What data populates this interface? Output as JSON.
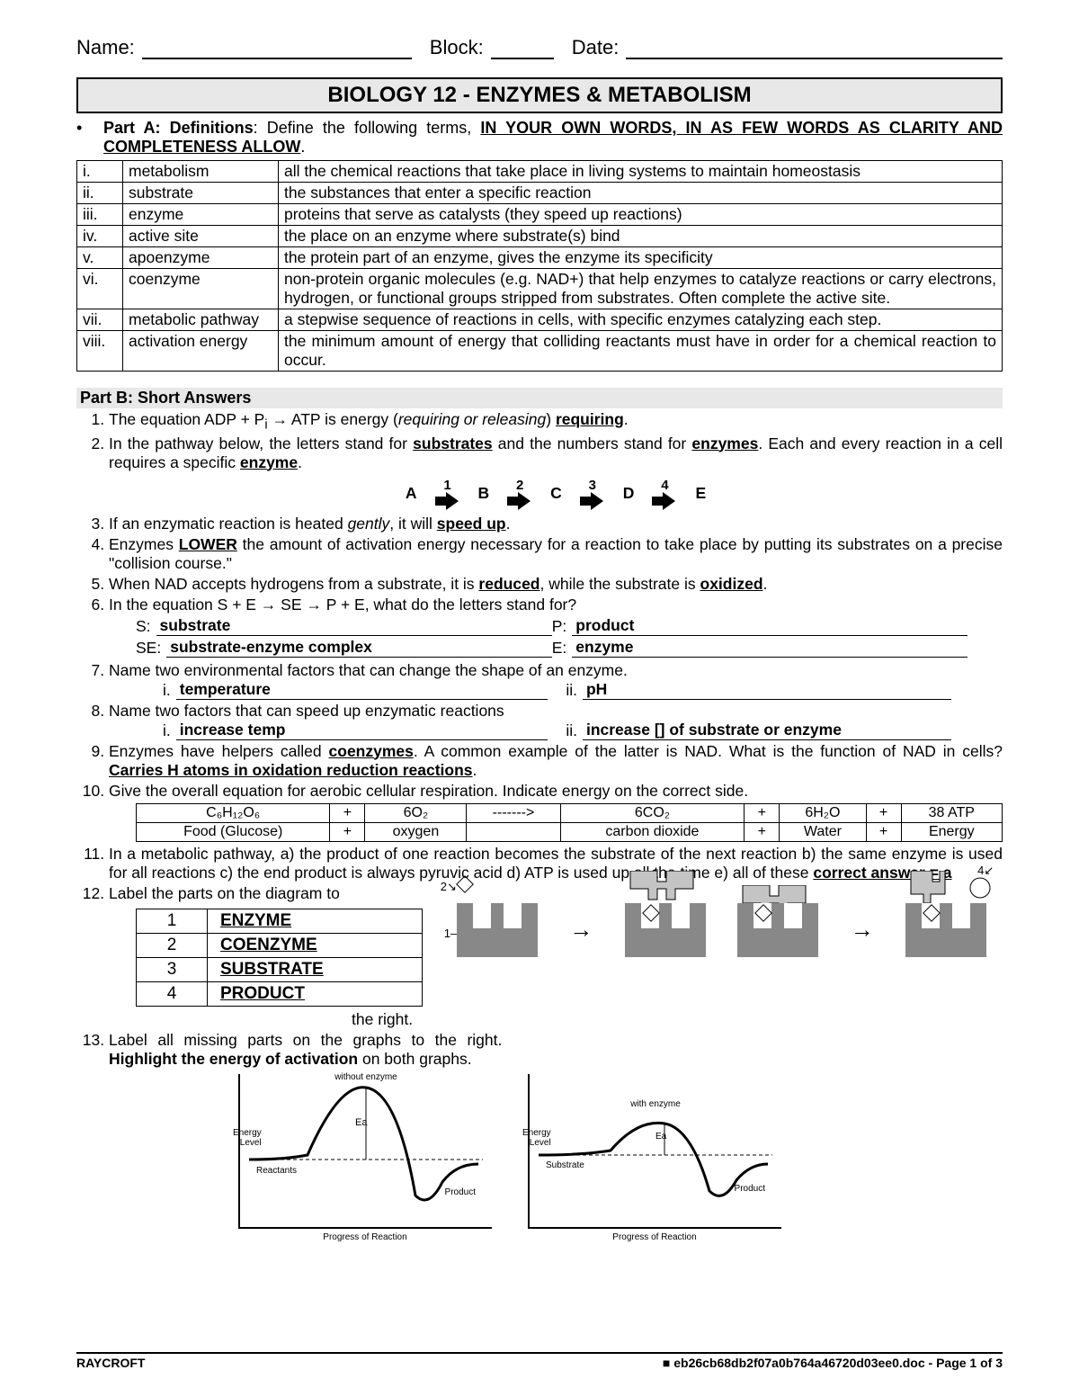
{
  "header": {
    "name_label": "Name:",
    "block_label": "Block:",
    "date_label": "Date:"
  },
  "title": "BIOLOGY 12 - ENZYMES & METABOLISM",
  "partA": {
    "label_bold": "Part A: Definitions",
    "intro_plain": ":   Define the following terms, ",
    "intro_bu": "IN YOUR OWN WORDS, IN AS FEW WORDS AS CLARITY AND COMPLETENESS ALLOW",
    "rows": [
      {
        "n": "i.",
        "term": "metabolism",
        "def": "all the chemical reactions that take place in living systems to maintain homeostasis"
      },
      {
        "n": "ii.",
        "term": "substrate",
        "def": "the substances that enter a specific reaction"
      },
      {
        "n": "iii.",
        "term": "enzyme",
        "def": "proteins that serve as catalysts (they speed up reactions)"
      },
      {
        "n": "iv.",
        "term": "active site",
        "def": "the place on an enzyme where substrate(s) bind"
      },
      {
        "n": "v.",
        "term": "apoenzyme",
        "def": "the protein part of an enzyme, gives the enzyme its specificity"
      },
      {
        "n": "vi.",
        "term": "coenzyme",
        "def": "non-protein organic molecules (e.g. NAD+) that help enzymes to catalyze reactions or carry electrons, hydrogen, or functional groups stripped from substrates.  Often complete the active site."
      },
      {
        "n": "vii.",
        "term": "metabolic pathway",
        "def": "a stepwise sequence of reactions in cells, with specific enzymes catalyzing each step."
      },
      {
        "n": "viii.",
        "term": "activation energy",
        "def": "the minimum amount of energy that colliding reactants must have in order for a chemical reaction to occur."
      }
    ]
  },
  "partB": {
    "heading": "Part B:  Short Answers",
    "q1_pre": "The equation ADP + P",
    "q1_sub": "i",
    "q1_mid": " → ATP is energy (",
    "q1_it": "requiring or releasing",
    "q1_post": ") ",
    "q1_ans": "requiring",
    "q2_a": "In the pathway below, the letters stand for ",
    "q2_b": "substrates",
    "q2_c": " and the numbers stand for ",
    "q2_d": "enzymes",
    "q2_e": ".  Each and every reaction in a cell requires a specific ",
    "q2_f": "enzyme",
    "pathway": {
      "letters": [
        "A",
        "B",
        "C",
        "D",
        "E"
      ],
      "nums": [
        "1",
        "2",
        "3",
        "4"
      ]
    },
    "q3_a": "If an enzymatic reaction is heated ",
    "q3_it": "gently",
    "q3_b": ", it will ",
    "q3_ans": "speed up",
    "q4_a": "Enzymes ",
    "q4_b": "LOWER",
    "q4_c": " the amount of activation energy necessary for a reaction to take place by putting its substrates on a precise \"collision course.\"",
    "q5_a": "When NAD accepts hydrogens from a substrate, it is ",
    "q5_b": "reduced",
    "q5_c": ", while the substrate is ",
    "q5_d": "oxidized",
    "q6": "In the equation S + E → SE → P + E, what do the letters stand for?",
    "q6_pairs": [
      {
        "k": "S:",
        "v": "substrate"
      },
      {
        "k": "P:",
        "v": "product"
      },
      {
        "k": "SE:",
        "v": "substrate-enzyme complex"
      },
      {
        "k": "E:",
        "v": "enzyme"
      }
    ],
    "q7": "Name two environmental factors that can change the shape of an enzyme.",
    "q7_i": "temperature",
    "q7_ii": "pH",
    "q8": "Name two factors that can speed up enzymatic reactions",
    "q8_i": "increase temp",
    "q8_ii": "increase [] of substrate or enzyme",
    "q9_a": "Enzymes have helpers called ",
    "q9_b": "coenzymes",
    "q9_c": ".  A common example of the latter is NAD.  What is the function of NAD in cells? ",
    "q9_d": "Carries H atoms in oxidation reduction reactions",
    "q10": "Give the overall equation for aerobic cellular respiration.  Indicate energy on the correct side.",
    "resp_table": {
      "row1": [
        "C₆H₁₂O₆",
        "+",
        "6O₂",
        "------->",
        "6CO₂",
        "+",
        "6H₂O",
        "+",
        "38 ATP"
      ],
      "row2": [
        "Food (Glucose)",
        "+",
        "oxygen",
        "",
        "carbon dioxide",
        "+",
        "Water",
        "+",
        "Energy"
      ]
    },
    "q11_a": "In a metabolic pathway, a) the product of one reaction becomes the substrate of the next reaction  b) the same enzyme is used for all reactions  c) the end product is always pyruvic acid  d) ATP is used up all the time  e) all of these  ",
    "q11_b": "correct answer = a",
    "q12": "Label the parts on the diagram to",
    "q12_right": "the right.",
    "q12_labels": [
      {
        "n": "1",
        "t": "ENZYME"
      },
      {
        "n": "2",
        "t": "COENZYME"
      },
      {
        "n": "3",
        "t": "SUBSTRATE"
      },
      {
        "n": "4",
        "t": "PRODUCT"
      }
    ],
    "q13_a": "Label all missing parts on the graphs to the right.  ",
    "q13_b": "Highlight the energy of activation",
    "q13_c": " on both graphs.",
    "graph1_title": "without enzyme",
    "graph2_title": "with enzyme",
    "graph_ylab": "Energy\nLevel",
    "graph_xlab": "Progress of Reaction",
    "graph_reactants": "Reactants",
    "graph_substrate": "Substrate",
    "graph_product": "Product",
    "graph_ea": "Ea"
  },
  "footer": {
    "left": "RAYCROFT",
    "right": "■  eb26cb68db2f07a0b764a46720d03ee0.doc - Page 1 of 3"
  },
  "colors": {
    "title_bg": "#e8e8e8",
    "border": "#000000",
    "text": "#000000"
  }
}
